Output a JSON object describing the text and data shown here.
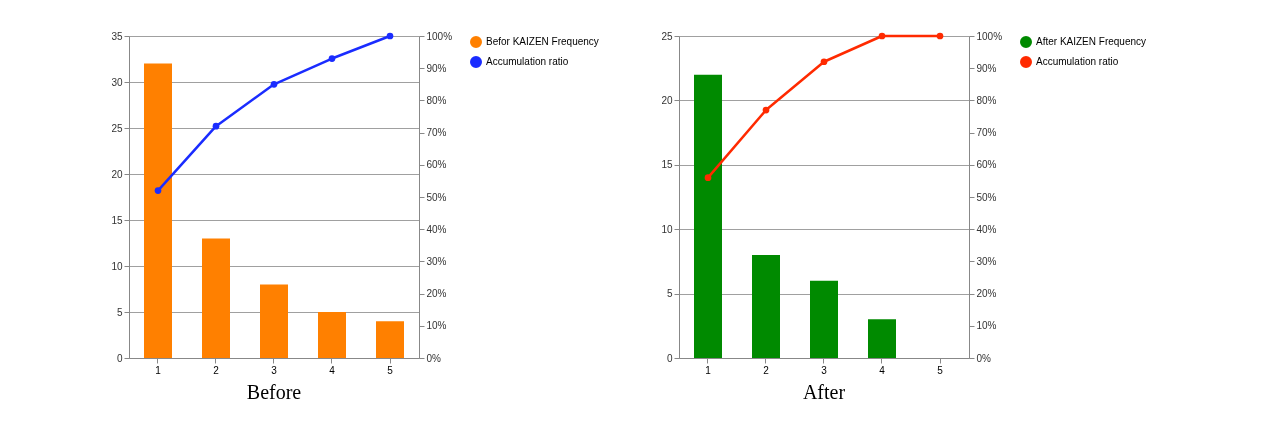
{
  "chart_data": [
    {
      "type": "bar",
      "categories": [
        "1",
        "2",
        "3",
        "4",
        "5"
      ],
      "series": [
        {
          "name": "Befor KAIZEN Frequency",
          "color": "#ff8000",
          "values": [
            32,
            13,
            8,
            5,
            4
          ]
        },
        {
          "name": "Accumulation ratio",
          "type": "line",
          "axis": "y2",
          "color": "#1a2cff",
          "values": [
            52,
            72,
            85,
            93,
            100
          ]
        }
      ],
      "ylim": [
        0,
        35
      ],
      "yticks": [
        0,
        5,
        10,
        15,
        20,
        25,
        30,
        35
      ],
      "y2lim": [
        0,
        100
      ],
      "y2ticks": [
        {
          "value": 0,
          "label": "0%"
        },
        {
          "value": 10,
          "label": "10%"
        },
        {
          "value": 20,
          "label": "20%"
        },
        {
          "value": 30,
          "label": "30%"
        },
        {
          "value": 40,
          "label": "40%"
        },
        {
          "value": 50,
          "label": "50%"
        },
        {
          "value": 60,
          "label": "60%"
        },
        {
          "value": 70,
          "label": "70%"
        },
        {
          "value": 80,
          "label": "80%"
        },
        {
          "value": 90,
          "label": "90%"
        },
        {
          "value": 100,
          "label": "100%"
        }
      ],
      "grid": "y",
      "legend": "right",
      "marker": "circle",
      "annotations": [
        "Before"
      ]
    },
    {
      "type": "bar",
      "categories": [
        "1",
        "2",
        "3",
        "4",
        "5"
      ],
      "series": [
        {
          "name": "After KAIZEN Frequency",
          "color": "#008a00",
          "values": [
            22,
            8,
            6,
            3,
            0
          ]
        },
        {
          "name": "Accumulation ratio",
          "type": "line",
          "axis": "y2",
          "color": "#ff2a00",
          "values": [
            56,
            77,
            92,
            100,
            100
          ]
        }
      ],
      "ylim": [
        0,
        25
      ],
      "yticks": [
        0,
        5,
        10,
        15,
        20,
        25
      ],
      "y2lim": [
        0,
        100
      ],
      "y2ticks": [
        {
          "value": 0,
          "label": "0%"
        },
        {
          "value": 10,
          "label": "10%"
        },
        {
          "value": 20,
          "label": "20%"
        },
        {
          "value": 30,
          "label": "30%"
        },
        {
          "value": 40,
          "label": "40%"
        },
        {
          "value": 50,
          "label": "50%"
        },
        {
          "value": 60,
          "label": "60%"
        },
        {
          "value": 70,
          "label": "70%"
        },
        {
          "value": 80,
          "label": "80%"
        },
        {
          "value": 90,
          "label": "90%"
        },
        {
          "value": 100,
          "label": "100%"
        }
      ],
      "grid": "y",
      "legend": "right",
      "marker": "circle",
      "annotations": [
        "After"
      ]
    }
  ]
}
